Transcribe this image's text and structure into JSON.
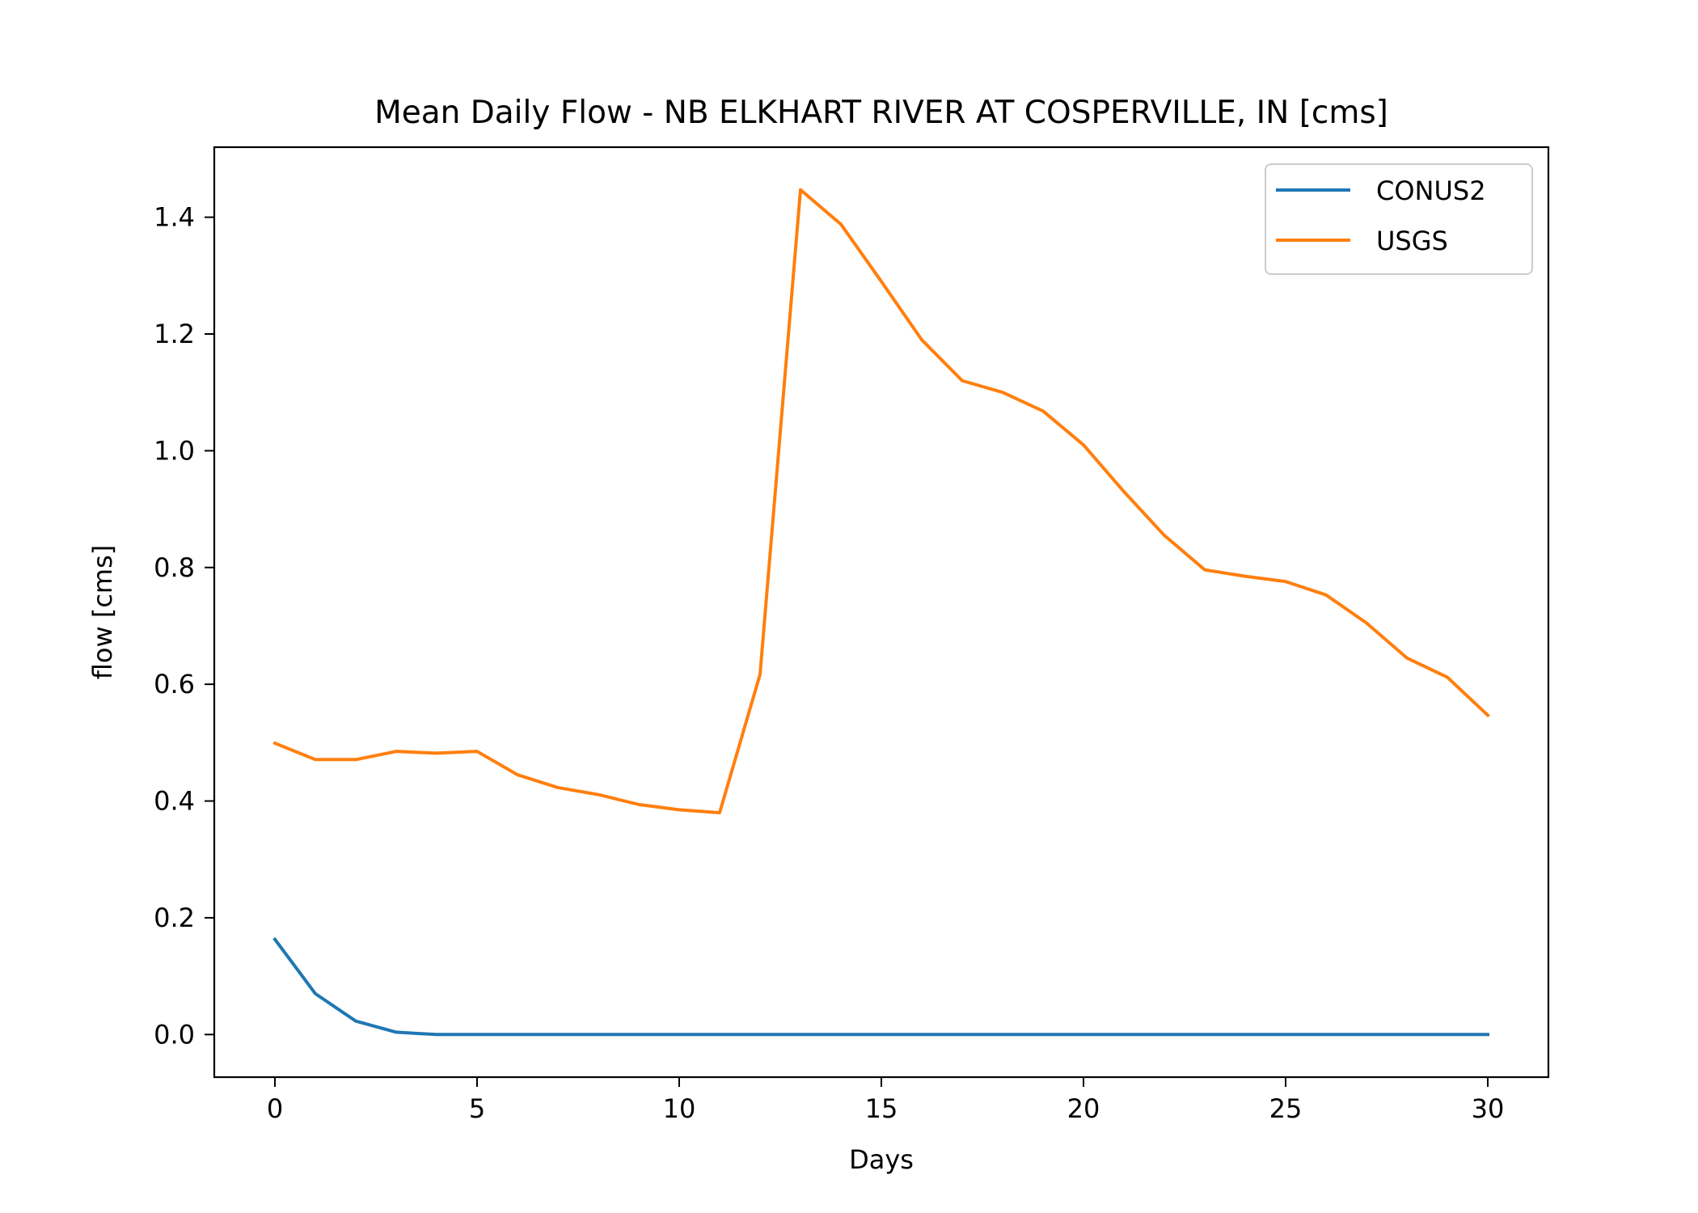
{
  "chart_data": {
    "type": "line",
    "title": "Mean Daily Flow - NB ELKHART RIVER AT COSPERVILLE, IN [cms]",
    "xlabel": "Days",
    "ylabel": "flow [cms]",
    "xlim": [
      -1.5,
      31.5
    ],
    "ylim": [
      -0.073,
      1.52
    ],
    "xticks": [
      0,
      5,
      10,
      15,
      20,
      25,
      30
    ],
    "xtick_labels": [
      "0",
      "5",
      "10",
      "15",
      "20",
      "25",
      "30"
    ],
    "yticks": [
      0.0,
      0.2,
      0.4,
      0.6,
      0.8,
      1.0,
      1.2,
      1.4
    ],
    "ytick_labels": [
      "0.0",
      "0.2",
      "0.4",
      "0.6",
      "0.8",
      "1.0",
      "1.2",
      "1.4"
    ],
    "grid": false,
    "legend_position": "top-right",
    "x": [
      0,
      1,
      2,
      3,
      4,
      5,
      6,
      7,
      8,
      9,
      10,
      11,
      12,
      13,
      14,
      15,
      16,
      17,
      18,
      19,
      20,
      21,
      22,
      23,
      24,
      25,
      26,
      27,
      28,
      29,
      30
    ],
    "series": [
      {
        "name": "CONUS2",
        "color": "#1f77b4",
        "values": [
          0.163,
          0.07,
          0.023,
          0.004,
          0.0,
          0.0,
          0.0,
          0.0,
          0.0,
          0.0,
          0.0,
          0.0,
          0.0,
          0.0,
          0.0,
          0.0,
          0.0,
          0.0,
          0.0,
          0.0,
          0.0,
          0.0,
          0.0,
          0.0,
          0.0,
          0.0,
          0.0,
          0.0,
          0.0,
          0.0,
          0.0
        ]
      },
      {
        "name": "USGS",
        "color": "#ff7f0e",
        "values": [
          0.499,
          0.471,
          0.471,
          0.485,
          0.482,
          0.485,
          0.445,
          0.423,
          0.411,
          0.394,
          0.385,
          0.38,
          0.617,
          1.447,
          1.388,
          1.29,
          1.19,
          1.12,
          1.1,
          1.068,
          1.01,
          0.93,
          0.855,
          0.796,
          0.785,
          0.776,
          0.753,
          0.705,
          0.645,
          0.612,
          0.547
        ]
      }
    ]
  }
}
